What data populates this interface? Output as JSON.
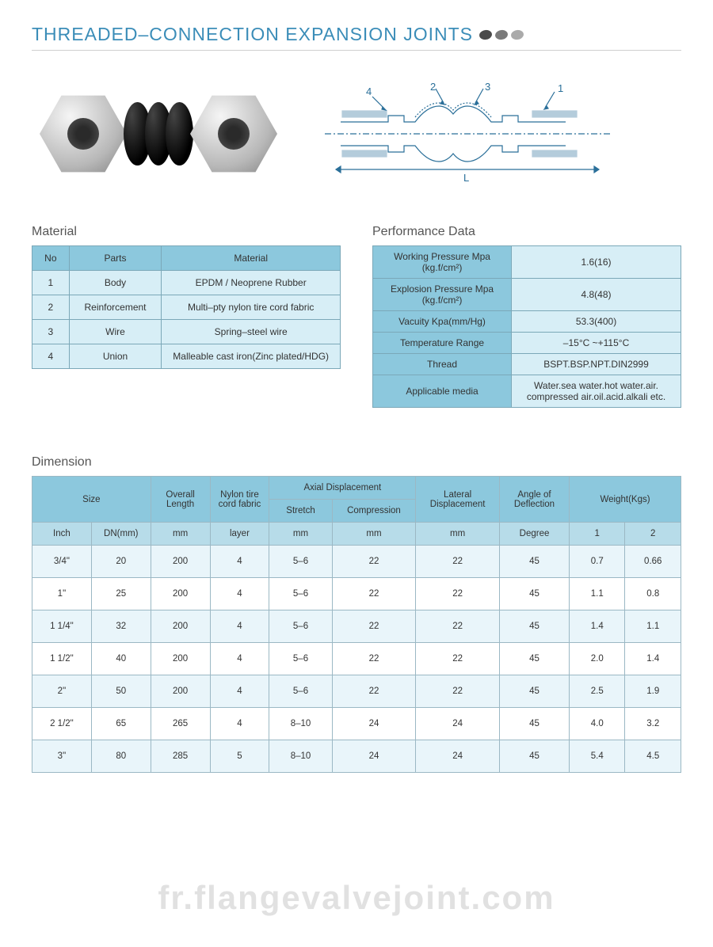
{
  "title": "THREADED–CONNECTION EXPANSION  JOINTS",
  "title_color": "#3b8db8",
  "title_fontsize": 23,
  "dot_colors": [
    "#4a4a4a",
    "#7a7a7a",
    "#aaaaaa"
  ],
  "diagram": {
    "labels": [
      "1",
      "2",
      "3",
      "4"
    ],
    "length_label": "L",
    "stroke_color": "#2a6f99"
  },
  "material": {
    "header": "Material",
    "columns": [
      "No",
      "Parts",
      "Material"
    ],
    "rows": [
      [
        "1",
        "Body",
        "EPDM / Neoprene Rubber"
      ],
      [
        "2",
        "Reinforcement",
        "Multi–pty nylon tire cord fabric"
      ],
      [
        "3",
        "Wire",
        "Spring–steel wire"
      ],
      [
        "4",
        "Union",
        "Malleable cast iron(Zinc plated/HDG)"
      ]
    ],
    "header_bg": "#8cc8dd",
    "row_bg": "#d7eef6",
    "border_color": "#7ba8b8"
  },
  "performance": {
    "header": "Performance Data",
    "rows": [
      [
        "Working Pressure Mpa (kg.f/cm²)",
        "1.6(16)"
      ],
      [
        "Explosion Pressure Mpa (kg.f/cm²)",
        "4.8(48)"
      ],
      [
        "Vacuity Kpa(mm/Hg)",
        "53.3(400)"
      ],
      [
        "Temperature Range",
        "–15°C ~+115°C"
      ],
      [
        "Thread",
        "BSPT.BSP.NPT.DIN2999"
      ],
      [
        "Applicable media",
        "Water.sea water.hot water.air. compressed air.oil.acid.alkali etc."
      ]
    ],
    "label_bg": "#8cc8dd",
    "value_bg": "#d7eef6",
    "border_color": "#7ba8b8"
  },
  "dimension": {
    "header": "Dimension",
    "group_headers": {
      "size": "Size",
      "overall_length": "Overall Length",
      "nylon": "Nylon tire cord fabric",
      "axial": "Axial Displacement",
      "stretch": "Stretch",
      "compression": "Compression",
      "lateral": "Lateral Displacement",
      "angle": "Angle of Deflection",
      "weight": "Weight(Kgs)"
    },
    "sub_headers": [
      "Inch",
      "DN(mm)",
      "mm",
      "layer",
      "mm",
      "mm",
      "mm",
      "Degree",
      "1",
      "2"
    ],
    "rows": [
      [
        "3/4\"",
        "20",
        "200",
        "4",
        "5–6",
        "22",
        "22",
        "45",
        "0.7",
        "0.66"
      ],
      [
        "1\"",
        "25",
        "200",
        "4",
        "5–6",
        "22",
        "22",
        "45",
        "1.1",
        "0.8"
      ],
      [
        "1 1/4\"",
        "32",
        "200",
        "4",
        "5–6",
        "22",
        "22",
        "45",
        "1.4",
        "1.1"
      ],
      [
        "1 1/2\"",
        "40",
        "200",
        "4",
        "5–6",
        "22",
        "22",
        "45",
        "2.0",
        "1.4"
      ],
      [
        "2\"",
        "50",
        "200",
        "4",
        "5–6",
        "22",
        "22",
        "45",
        "2.5",
        "1.9"
      ],
      [
        "2 1/2\"",
        "65",
        "265",
        "4",
        "8–10",
        "24",
        "24",
        "45",
        "4.0",
        "3.2"
      ],
      [
        "3\"",
        "80",
        "285",
        "5",
        "8–10",
        "24",
        "24",
        "45",
        "5.4",
        "4.5"
      ]
    ],
    "header_bg": "#8cc8dd",
    "sub_bg": "#b7dce9",
    "row_alt_bg": "#e9f5fa",
    "row_bg": "#ffffff",
    "border_color": "#9bb8c4",
    "col_widths_pct": [
      8.5,
      8.5,
      8.5,
      8.5,
      9,
      12,
      12,
      10,
      8,
      8
    ]
  },
  "watermark": "fr.flangevalvejoint.com"
}
